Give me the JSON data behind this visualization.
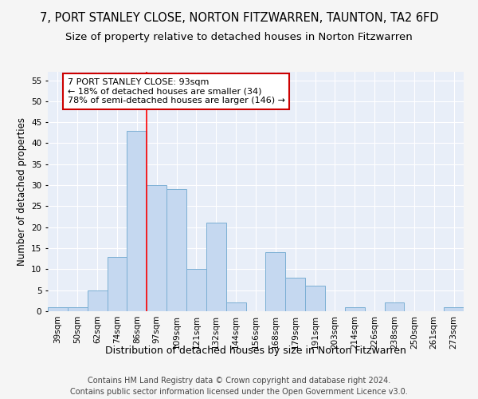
{
  "title": "7, PORT STANLEY CLOSE, NORTON FITZWARREN, TAUNTON, TA2 6FD",
  "subtitle": "Size of property relative to detached houses in Norton Fitzwarren",
  "xlabel": "Distribution of detached houses by size in Norton Fitzwarren",
  "ylabel": "Number of detached properties",
  "footnote1": "Contains HM Land Registry data © Crown copyright and database right 2024.",
  "footnote2": "Contains public sector information licensed under the Open Government Licence v3.0.",
  "bar_labels": [
    "39sqm",
    "50sqm",
    "62sqm",
    "74sqm",
    "86sqm",
    "97sqm",
    "109sqm",
    "121sqm",
    "132sqm",
    "144sqm",
    "156sqm",
    "168sqm",
    "179sqm",
    "191sqm",
    "203sqm",
    "214sqm",
    "226sqm",
    "238sqm",
    "250sqm",
    "261sqm",
    "273sqm"
  ],
  "bar_values": [
    1,
    1,
    5,
    13,
    43,
    30,
    29,
    10,
    21,
    2,
    0,
    14,
    8,
    6,
    0,
    1,
    0,
    2,
    0,
    0,
    1
  ],
  "bar_color": "#c5d8f0",
  "bar_edge_color": "#7bafd4",
  "bg_color": "#e8eef8",
  "grid_color": "#ffffff",
  "fig_bg_color": "#f5f5f5",
  "ylim_max": 57,
  "yticks": [
    0,
    5,
    10,
    15,
    20,
    25,
    30,
    35,
    40,
    45,
    50,
    55
  ],
  "property_label": "7 PORT STANLEY CLOSE: 93sqm",
  "annotation_line1": "← 18% of detached houses are smaller (34)",
  "annotation_line2": "78% of semi-detached houses are larger (146) →",
  "red_line_bar_index": 4,
  "annotation_box_facecolor": "#ffffff",
  "annotation_box_edgecolor": "#cc0000",
  "title_fontsize": 10.5,
  "subtitle_fontsize": 9.5,
  "xlabel_fontsize": 9,
  "ylabel_fontsize": 8.5,
  "tick_fontsize": 7.5,
  "annotation_fontsize": 8,
  "footnote_fontsize": 7
}
